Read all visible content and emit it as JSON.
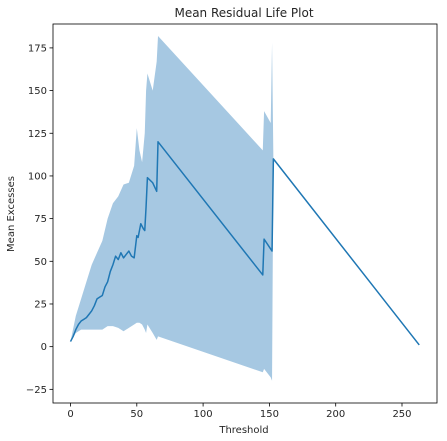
{
  "chart_data": {
    "type": "line",
    "title": "Mean Residual Life Plot",
    "xlabel": "Threshold",
    "ylabel": "Mean Excesses",
    "xlim": [
      -13.2,
      276.4
    ],
    "ylim": [
      -33.0,
      189.0
    ],
    "xticks": [
      0,
      50,
      100,
      150,
      200,
      250
    ],
    "yticks": [
      -25,
      0,
      25,
      50,
      75,
      100,
      125,
      150,
      175
    ],
    "grid": false,
    "colors": {
      "line": "#1f77b4",
      "band": "#a6c8e2"
    },
    "series": [
      {
        "x": [
          0,
          2,
          4,
          6,
          8,
          10,
          12,
          14,
          16,
          18,
          20,
          22,
          24,
          26,
          28,
          30,
          32,
          34,
          36,
          38,
          40,
          42,
          44,
          46,
          48,
          50,
          51,
          53,
          55,
          56,
          57,
          58,
          62,
          65,
          66,
          145,
          146,
          152,
          153,
          263
        ],
        "y": [
          3,
          6,
          10,
          13,
          15,
          16,
          17,
          19,
          21,
          24,
          28,
          29,
          30,
          35,
          38,
          44,
          48,
          53,
          51,
          55,
          52,
          54,
          56,
          53,
          52,
          65,
          64,
          72,
          69,
          68,
          82,
          99,
          96,
          91,
          120,
          42,
          63,
          56,
          110,
          1
        ]
      }
    ],
    "band": {
      "x": [
        0,
        4,
        8,
        12,
        16,
        20,
        24,
        28,
        32,
        36,
        40,
        44,
        48,
        50,
        52,
        54,
        56,
        57,
        58,
        62,
        65,
        66,
        145,
        146,
        151,
        152,
        153,
        263
      ],
      "upper": [
        3,
        18,
        28,
        38,
        48,
        55,
        62,
        75,
        84,
        88,
        95,
        96,
        106,
        128,
        115,
        108,
        125,
        150,
        160,
        150,
        167,
        182,
        115,
        138,
        131,
        178,
        110,
        1
      ],
      "lower": [
        3,
        8,
        10,
        10,
        10,
        10,
        10,
        12,
        12,
        11,
        9,
        11,
        13,
        14,
        14,
        13,
        10,
        8,
        13,
        8,
        4,
        6,
        -15,
        -13,
        -18,
        -20,
        110,
        1
      ]
    }
  }
}
